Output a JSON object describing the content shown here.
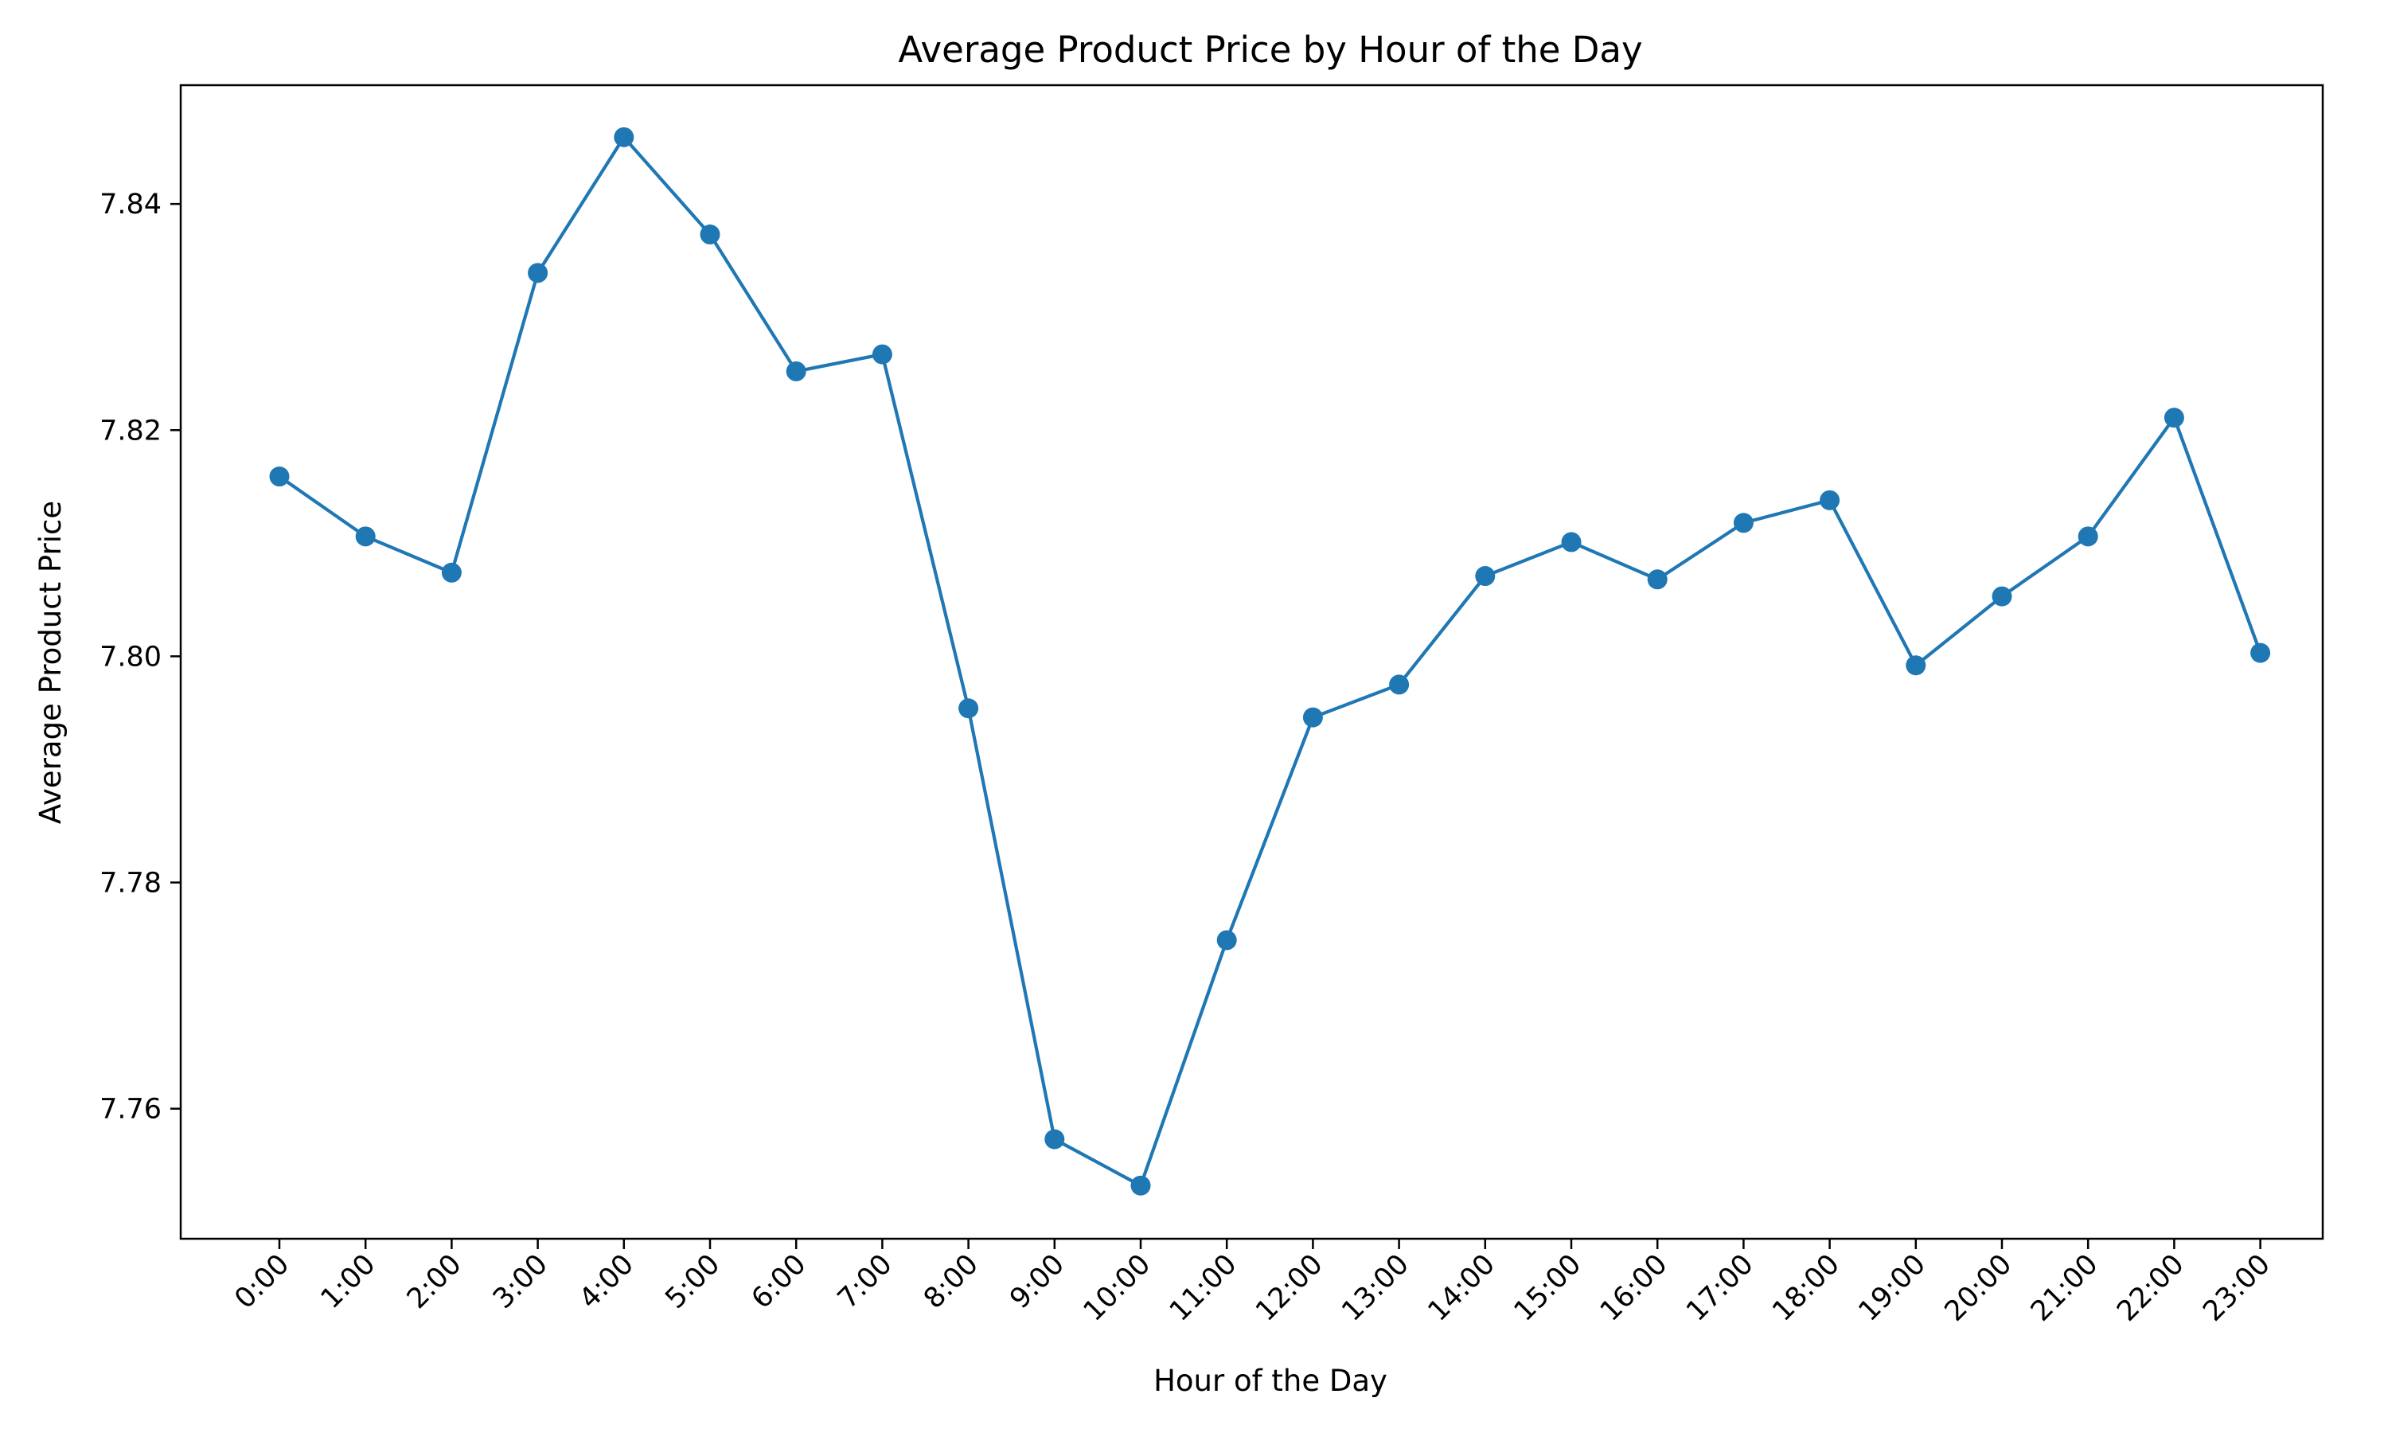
{
  "chart_data": {
    "type": "line",
    "title": "Average Product Price by Hour of the Day",
    "xlabel": "Hour of the Day",
    "ylabel": "Average Product Price",
    "categories": [
      "0:00",
      "1:00",
      "2:00",
      "3:00",
      "4:00",
      "5:00",
      "6:00",
      "7:00",
      "8:00",
      "9:00",
      "10:00",
      "11:00",
      "12:00",
      "13:00",
      "14:00",
      "15:00",
      "16:00",
      "17:00",
      "18:00",
      "19:00",
      "20:00",
      "21:00",
      "22:00",
      "23:00"
    ],
    "series": [
      {
        "values": [
          7.8159,
          7.8106,
          7.8074,
          7.8339,
          7.8459,
          7.8373,
          7.8252,
          7.8267,
          7.7954,
          7.7573,
          7.7532,
          7.7749,
          7.7946,
          7.7975,
          7.8071,
          7.8101,
          7.8068,
          7.8118,
          7.8138,
          7.7992,
          7.8053,
          7.8106,
          7.8211,
          7.8003
        ],
        "color": "#1f77b4"
      }
    ],
    "ylim": [
      7.7485,
      7.8505
    ],
    "yticks": [
      "7.76",
      "7.78",
      "7.80",
      "7.82",
      "7.84"
    ],
    "grid": false,
    "legend": false,
    "marker": "circle"
  }
}
